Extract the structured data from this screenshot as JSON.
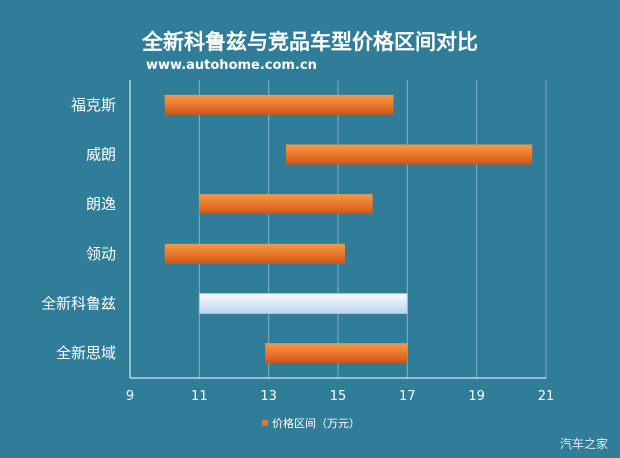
{
  "title": "全新科鲁兹与竞品车型价格区间对比",
  "subtitle": "www.autohome.com.cn",
  "watermark": "汽车之家",
  "colors": {
    "background": "#2f7d99",
    "bar": "#e8742a",
    "highlight_bar": "#dcebf6",
    "grid": "#9ccbdc"
  },
  "chart_data": {
    "type": "bar",
    "orientation": "horizontal-range",
    "categories": [
      "福克斯",
      "威朗",
      "朗逸",
      "领动",
      "全新科鲁兹",
      "全新思域"
    ],
    "ranges": [
      [
        10.0,
        16.6
      ],
      [
        13.5,
        20.6
      ],
      [
        11.0,
        16.0
      ],
      [
        10.0,
        15.2
      ],
      [
        11.0,
        17.0
      ],
      [
        12.9,
        17.0
      ]
    ],
    "highlight": "全新科鲁兹",
    "xticks": [
      9,
      11,
      13,
      15,
      17,
      19,
      21
    ],
    "xlim": [
      9,
      21
    ],
    "legend": "价格区间（万元）",
    "legend_position": "bottom",
    "grid": true
  }
}
